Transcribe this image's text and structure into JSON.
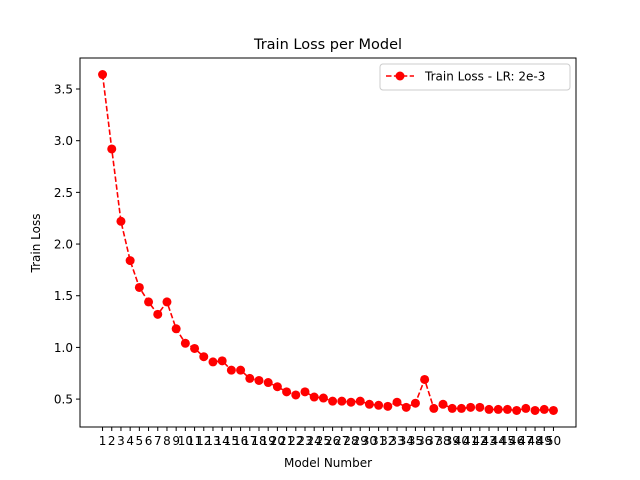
{
  "chart_data": {
    "type": "line",
    "title": "Train Loss per Model",
    "xlabel": "Model Number",
    "ylabel": "Train Loss",
    "x": [
      1,
      2,
      3,
      4,
      5,
      6,
      7,
      8,
      9,
      10,
      11,
      12,
      13,
      14,
      15,
      16,
      17,
      18,
      19,
      20,
      21,
      22,
      23,
      24,
      25,
      26,
      27,
      28,
      29,
      30,
      31,
      32,
      33,
      34,
      35,
      36,
      37,
      38,
      39,
      40,
      41,
      42,
      43,
      44,
      45,
      46,
      47,
      48,
      49,
      50
    ],
    "xtick_labels": [
      "1",
      "2",
      "3",
      "4",
      "5",
      "6",
      "7",
      "8",
      "9",
      "10",
      "11",
      "12",
      "13",
      "14",
      "15",
      "16",
      "17",
      "18",
      "19",
      "20",
      "21",
      "22",
      "23",
      "24",
      "25",
      "26",
      "27",
      "28",
      "29",
      "30",
      "31",
      "32",
      "33",
      "34",
      "35",
      "36",
      "37",
      "38",
      "39",
      "40",
      "41",
      "42",
      "43",
      "44",
      "45",
      "46",
      "47",
      "48",
      "49",
      "50"
    ],
    "yticks": [
      0.5,
      1.0,
      1.5,
      2.0,
      2.5,
      3.0,
      3.5
    ],
    "ytick_labels": [
      "0.5",
      "1.0",
      "1.5",
      "2.0",
      "2.5",
      "3.0",
      "3.5"
    ],
    "xlim": [
      -1.45,
      52.45
    ],
    "ylim": [
      0.23,
      3.8
    ],
    "grid": false,
    "legend_position": "top-right",
    "series": [
      {
        "name": "Train Loss - LR: 2e-3",
        "color": "#ff0000",
        "line_style": "dashed",
        "marker": "circle",
        "values": [
          3.64,
          2.92,
          2.22,
          1.84,
          1.58,
          1.44,
          1.32,
          1.44,
          1.18,
          1.04,
          0.99,
          0.91,
          0.86,
          0.87,
          0.78,
          0.78,
          0.7,
          0.68,
          0.66,
          0.62,
          0.57,
          0.54,
          0.57,
          0.52,
          0.51,
          0.48,
          0.48,
          0.47,
          0.48,
          0.45,
          0.44,
          0.43,
          0.47,
          0.42,
          0.46,
          0.69,
          0.41,
          0.45,
          0.41,
          0.41,
          0.42,
          0.42,
          0.4,
          0.4,
          0.4,
          0.39,
          0.41,
          0.39,
          0.4,
          0.39
        ]
      }
    ]
  }
}
